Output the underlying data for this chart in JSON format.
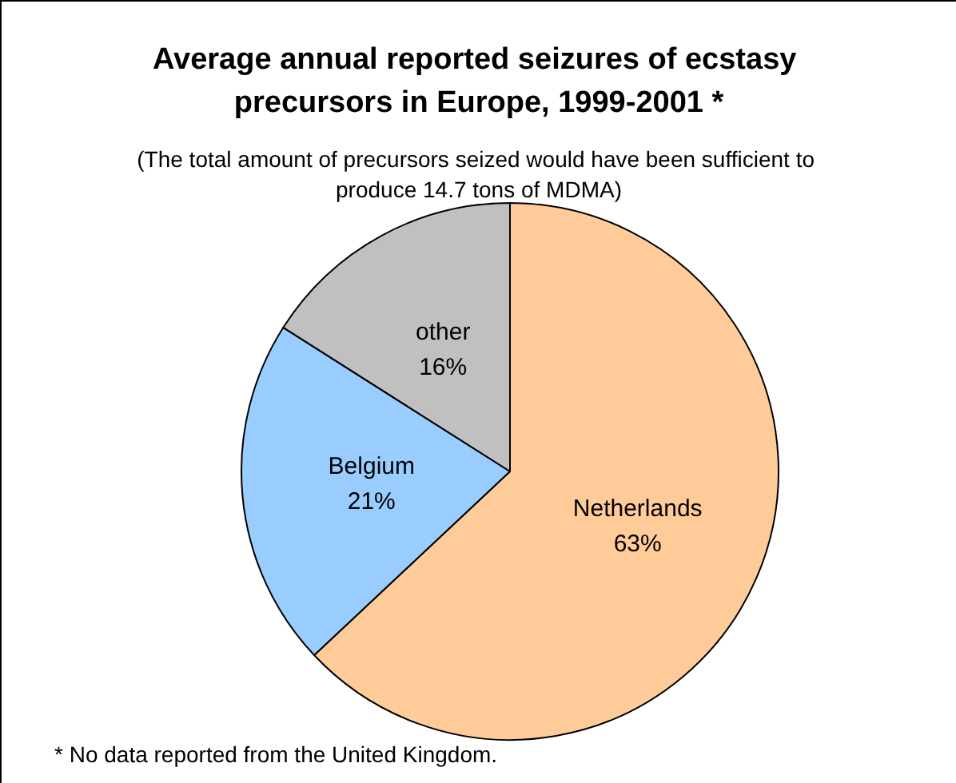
{
  "chart_data": {
    "type": "pie",
    "title": "Average annual reported seizures of ecstasy precursors in Europe, 1999-2001 *",
    "subtitle": "(The total amount of precursors seized would have been sufficient to produce 14.7 tons of MDMA)",
    "categories": [
      "Netherlands",
      "Belgium",
      "other"
    ],
    "values": [
      63,
      21,
      16
    ],
    "colors": [
      "#ffcc99",
      "#99ccff",
      "#c0c0c0"
    ],
    "value_labels": [
      "63%",
      "21%",
      "16%"
    ],
    "annotations": [
      "* No data reported from the United Kingdom."
    ]
  }
}
